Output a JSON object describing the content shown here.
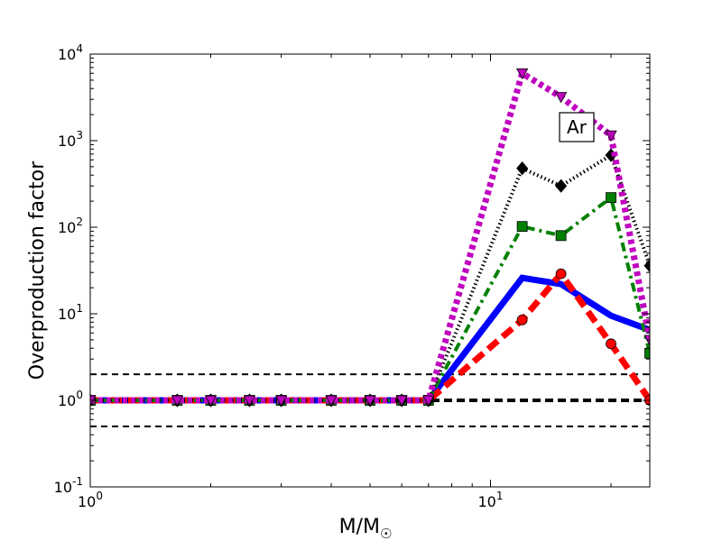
{
  "chart_data": {
    "type": "line",
    "title": "",
    "xlabel": "M/M",
    "xlabel_symbol": "☉",
    "ylabel": "Overproduction factor",
    "xscale": "log",
    "yscale": "log",
    "xlim": [
      1,
      25
    ],
    "ylim": [
      0.1,
      10000
    ],
    "x_ticks": [
      {
        "value": 1,
        "base": "10",
        "exp": "0"
      },
      {
        "value": 10,
        "base": "10",
        "exp": "1"
      }
    ],
    "y_ticks": [
      {
        "value": 0.1,
        "base": "10",
        "exp": "-1"
      },
      {
        "value": 1,
        "base": "10",
        "exp": "0"
      },
      {
        "value": 10,
        "base": "10",
        "exp": "1"
      },
      {
        "value": 100,
        "base": "10",
        "exp": "2"
      },
      {
        "value": 1000,
        "base": "10",
        "exp": "3"
      },
      {
        "value": 10000,
        "base": "10",
        "exp": "4"
      }
    ],
    "annotation": "Ar",
    "reference_lines": [
      {
        "y": 2,
        "style": "dashed-thin"
      },
      {
        "y": 1,
        "style": "dashed-thick"
      },
      {
        "y": 0.5,
        "style": "dashed-thin"
      }
    ],
    "series": [
      {
        "color": "#0000ff",
        "linestyle": "solid",
        "marker": "none",
        "x": [
          1,
          1.65,
          2,
          2.5,
          3,
          4,
          5,
          6,
          7,
          12,
          15,
          20,
          25
        ],
        "y": [
          1,
          1,
          1,
          1,
          1,
          1,
          1,
          1,
          1,
          26,
          22,
          9.5,
          6.5
        ]
      },
      {
        "color": "#ff0000",
        "linestyle": "dashed",
        "marker": "circle",
        "x": [
          1,
          1.65,
          2,
          2.5,
          3,
          4,
          5,
          6,
          7,
          12,
          15,
          20,
          25
        ],
        "y": [
          1,
          1,
          1,
          1,
          1,
          1,
          1,
          1,
          1,
          8.5,
          29,
          4.5,
          1.0
        ]
      },
      {
        "color": "#008000",
        "linestyle": "dashdot",
        "marker": "square",
        "x": [
          1,
          1.65,
          2,
          2.5,
          3,
          4,
          5,
          6,
          7,
          12,
          15,
          20,
          25
        ],
        "y": [
          1,
          1,
          1,
          1,
          1,
          1,
          1,
          1,
          1,
          102,
          80,
          220,
          3.5
        ]
      },
      {
        "color": "#000000",
        "linestyle": "dotted",
        "marker": "diamond",
        "x": [
          1,
          1.65,
          2,
          2.5,
          3,
          4,
          5,
          6,
          7,
          12,
          15,
          20,
          25
        ],
        "y": [
          1,
          1,
          1,
          1,
          1,
          1,
          1,
          1,
          1,
          480,
          300,
          680,
          36
        ]
      },
      {
        "color": "#bf00bf",
        "linestyle": "dotted-thick",
        "marker": "triangle-down",
        "x": [
          1,
          1.65,
          2,
          2.5,
          3,
          4,
          5,
          6,
          7,
          12,
          15,
          20,
          25
        ],
        "y": [
          1,
          1,
          1,
          1,
          1,
          1,
          1,
          1,
          1,
          6000,
          3200,
          1150,
          5
        ]
      }
    ]
  }
}
